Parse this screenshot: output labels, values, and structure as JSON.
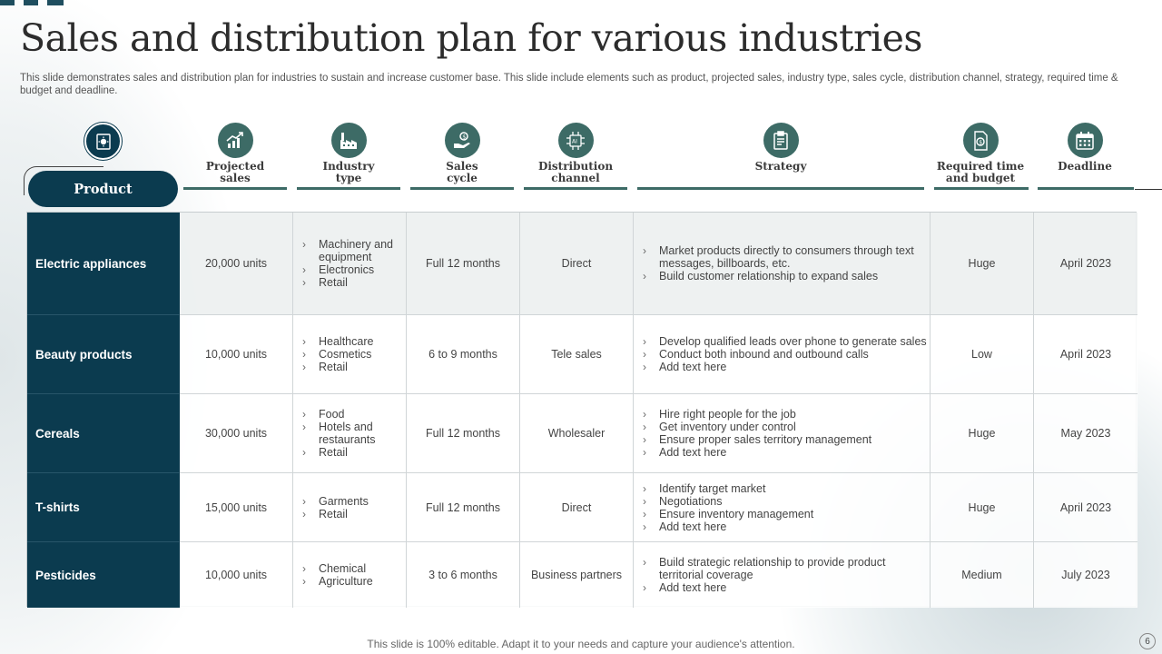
{
  "title": "Sales and distribution plan for various industries",
  "subtitle": "This slide demonstrates sales and distribution plan for industries to sustain and increase customer base. This slide include elements such as product, projected sales, industry type,  sales cycle, distribution channel, strategy, required time & budget and deadline.",
  "product_header": {
    "label": "Product",
    "icon": "product-badge-icon"
  },
  "columns": [
    {
      "label": "Projected sales",
      "icon": "growth-chart-icon"
    },
    {
      "label": "Industry type",
      "icon": "factory-icon"
    },
    {
      "label": "Sales cycle",
      "icon": "hand-coin-icon"
    },
    {
      "label": "Distribution channel",
      "icon": "ai-chip-icon"
    },
    {
      "label": "Strategy",
      "icon": "clipboard-icon"
    },
    {
      "label": "Required time and budget",
      "icon": "document-money-icon"
    },
    {
      "label": "Deadline",
      "icon": "calendar-icon"
    }
  ],
  "rows": [
    {
      "product": "Electric appliances",
      "projected_sales": "20,000 units",
      "industry_type": [
        "Machinery and equipment",
        "Electronics",
        "Retail"
      ],
      "sales_cycle": "Full 12 months",
      "distribution_channel": "Direct",
      "strategy": [
        "Market products directly to consumers through text messages, billboards, etc.",
        "Build customer relationship to expand sales"
      ],
      "budget": "Huge",
      "deadline": "April 2023"
    },
    {
      "product": "Beauty products",
      "projected_sales": "10,000 units",
      "industry_type": [
        "Healthcare",
        "Cosmetics",
        "Retail"
      ],
      "sales_cycle": "6 to 9 months",
      "distribution_channel": "Tele sales",
      "strategy": [
        "Develop qualified leads over phone to generate sales",
        "Conduct both inbound and outbound calls",
        "Add text here"
      ],
      "budget": "Low",
      "deadline": "April 2023"
    },
    {
      "product": "Cereals",
      "projected_sales": "30,000 units",
      "industry_type": [
        "Food",
        "Hotels and restaurants",
        "Retail"
      ],
      "sales_cycle": "Full 12 months",
      "distribution_channel": "Wholesaler",
      "strategy": [
        "Hire right people for the job",
        "Get inventory under control",
        "Ensure proper sales territory management",
        "Add text here"
      ],
      "budget": "Huge",
      "deadline": "May 2023"
    },
    {
      "product": "T-shirts",
      "projected_sales": "15,000 units",
      "industry_type": [
        "Garments",
        "Retail"
      ],
      "sales_cycle": "Full 12 months",
      "distribution_channel": "Direct",
      "strategy": [
        "Identify target market",
        "Negotiations",
        "Ensure inventory management",
        "Add text here"
      ],
      "budget": "Huge",
      "deadline": "April 2023"
    },
    {
      "product": "Pesticides",
      "projected_sales": "10,000 units",
      "industry_type": [
        "Chemical",
        "Agriculture"
      ],
      "sales_cycle": "3 to 6 months",
      "distribution_channel": "Business partners",
      "strategy": [
        "Build strategic relationship to provide product territorial coverage",
        "Add text here"
      ],
      "budget": "Medium",
      "deadline": "July 2023"
    }
  ],
  "footer": "This slide is 100% editable. Adapt it to your needs and capture your audience's attention.",
  "page_number": "6",
  "colors": {
    "primary": "#0b3b4f",
    "accent": "#3d6b66"
  }
}
